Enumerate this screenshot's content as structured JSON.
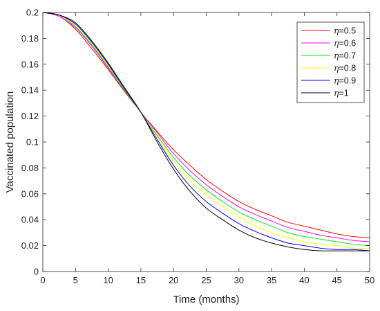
{
  "chart_data": {
    "type": "line",
    "title": "",
    "xlabel": "Time (months)",
    "ylabel": "Vaccinated population",
    "xlim": [
      0,
      50
    ],
    "ylim": [
      0,
      0.2
    ],
    "xticks": [
      "0",
      "5",
      "10",
      "15",
      "20",
      "25",
      "30",
      "35",
      "40",
      "45",
      "50"
    ],
    "yticks": [
      "0",
      "0.02",
      "0.04",
      "0.06",
      "0.08",
      "0.1",
      "0.12",
      "0.14",
      "0.16",
      "0.18",
      "0.2"
    ],
    "grid": false,
    "legend_position": "top-right",
    "x": [
      0,
      2.5,
      5,
      7.5,
      10,
      12.5,
      15,
      17.5,
      20,
      22.5,
      25,
      27.5,
      30,
      32.5,
      35,
      37.5,
      40,
      42.5,
      45,
      47.5,
      50
    ],
    "series": [
      {
        "name": "=0.5",
        "symbol": "η",
        "color": "#ff0000",
        "values": [
          0.2,
          0.197,
          0.187,
          0.172,
          0.156,
          0.139,
          0.123,
          0.108,
          0.094,
          0.082,
          0.071,
          0.062,
          0.054,
          0.048,
          0.043,
          0.038,
          0.035,
          0.032,
          0.029,
          0.027,
          0.026
        ]
      },
      {
        "name": "=0.6",
        "symbol": "η",
        "color": "#ff00ff",
        "values": [
          0.2,
          0.197,
          0.188,
          0.174,
          0.157,
          0.14,
          0.123,
          0.107,
          0.091,
          0.078,
          0.067,
          0.058,
          0.05,
          0.044,
          0.039,
          0.034,
          0.031,
          0.028,
          0.026,
          0.024,
          0.023
        ]
      },
      {
        "name": "=0.7",
        "symbol": "η",
        "color": "#00ee00",
        "values": [
          0.2,
          0.198,
          0.189,
          0.175,
          0.158,
          0.14,
          0.123,
          0.105,
          0.088,
          0.074,
          0.063,
          0.054,
          0.046,
          0.04,
          0.035,
          0.03,
          0.027,
          0.025,
          0.023,
          0.021,
          0.02
        ]
      },
      {
        "name": "=0.8",
        "symbol": "η",
        "color": "#ffff00",
        "values": [
          0.2,
          0.198,
          0.19,
          0.176,
          0.159,
          0.141,
          0.123,
          0.104,
          0.085,
          0.07,
          0.059,
          0.05,
          0.042,
          0.035,
          0.03,
          0.026,
          0.023,
          0.021,
          0.02,
          0.018,
          0.018
        ]
      },
      {
        "name": "=0.9",
        "symbol": "η",
        "color": "#0000ff",
        "values": [
          0.2,
          0.198,
          0.191,
          0.177,
          0.16,
          0.141,
          0.123,
          0.102,
          0.082,
          0.066,
          0.054,
          0.045,
          0.037,
          0.031,
          0.026,
          0.022,
          0.02,
          0.018,
          0.017,
          0.017,
          0.016
        ]
      },
      {
        "name": "=1",
        "symbol": "η",
        "color": "#000000",
        "values": [
          0.2,
          0.198,
          0.192,
          0.178,
          0.161,
          0.142,
          0.123,
          0.1,
          0.079,
          0.062,
          0.049,
          0.04,
          0.032,
          0.026,
          0.022,
          0.019,
          0.017,
          0.016,
          0.016,
          0.016,
          0.016
        ]
      }
    ]
  }
}
